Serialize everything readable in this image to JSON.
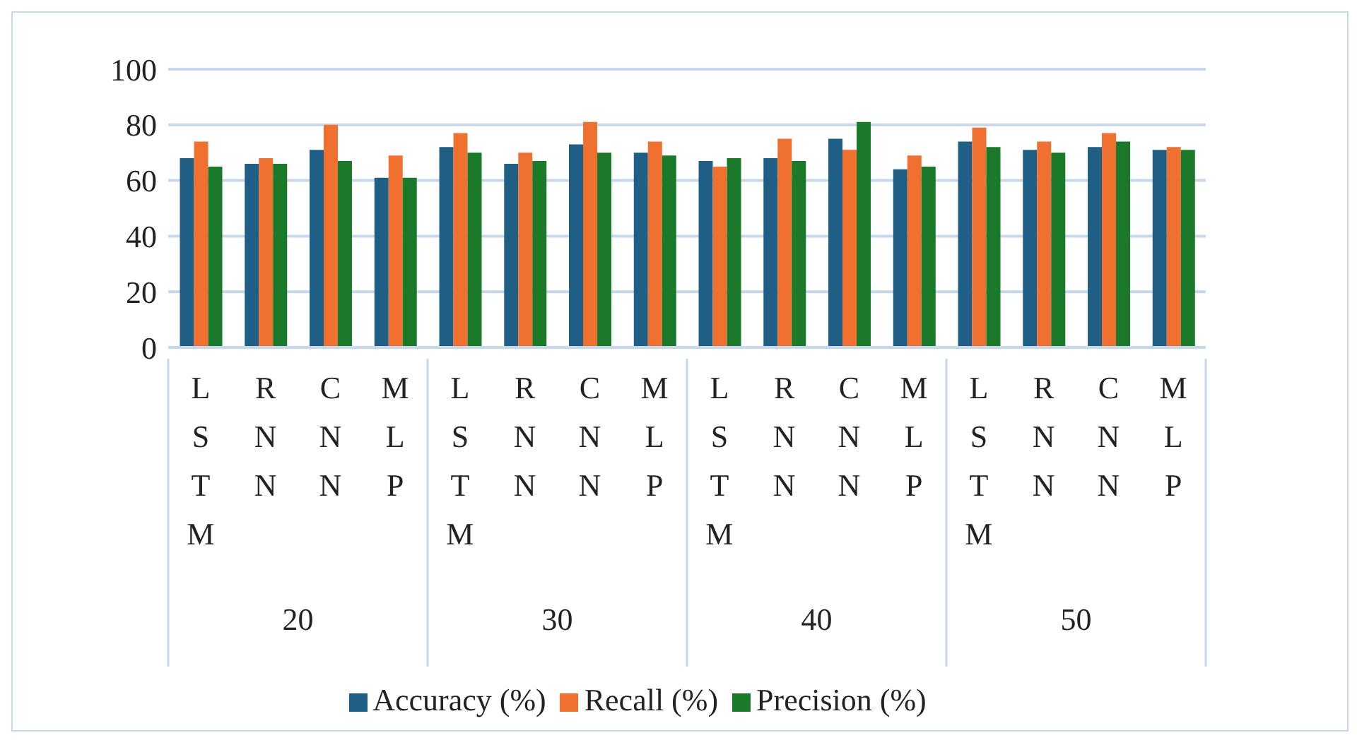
{
  "chart_data": {
    "type": "bar",
    "categories": [
      "LSTM",
      "RNN",
      "CNN",
      "MLP",
      "LSTM",
      "RNN",
      "CNN",
      "MLP",
      "LSTM",
      "RNN",
      "CNN",
      "MLP",
      "LSTM",
      "RNN",
      "CNN",
      "MLP"
    ],
    "annotations": [
      "20",
      "30",
      "40",
      "50"
    ],
    "series": [
      {
        "name": "Accuracy (%)",
        "color": "#1f5f86",
        "values": [
          68,
          66,
          71,
          61,
          72,
          66,
          73,
          70,
          67,
          68,
          75,
          64,
          74,
          71,
          72,
          71
        ]
      },
      {
        "name": "Recall (%)",
        "color": "#f07030",
        "values": [
          74,
          68,
          80,
          69,
          77,
          70,
          81,
          74,
          65,
          75,
          71,
          69,
          79,
          74,
          77,
          72
        ]
      },
      {
        "name": "Precision (%)",
        "color": "#1a7a2a",
        "values": [
          65,
          66,
          67,
          61,
          70,
          67,
          70,
          69,
          68,
          67,
          81,
          65,
          72,
          70,
          74,
          71
        ]
      }
    ],
    "ylim": [
      0,
      100
    ],
    "yticks": [
      0,
      20,
      40,
      60,
      80,
      100
    ],
    "grid": "y",
    "legend": "bottom"
  }
}
